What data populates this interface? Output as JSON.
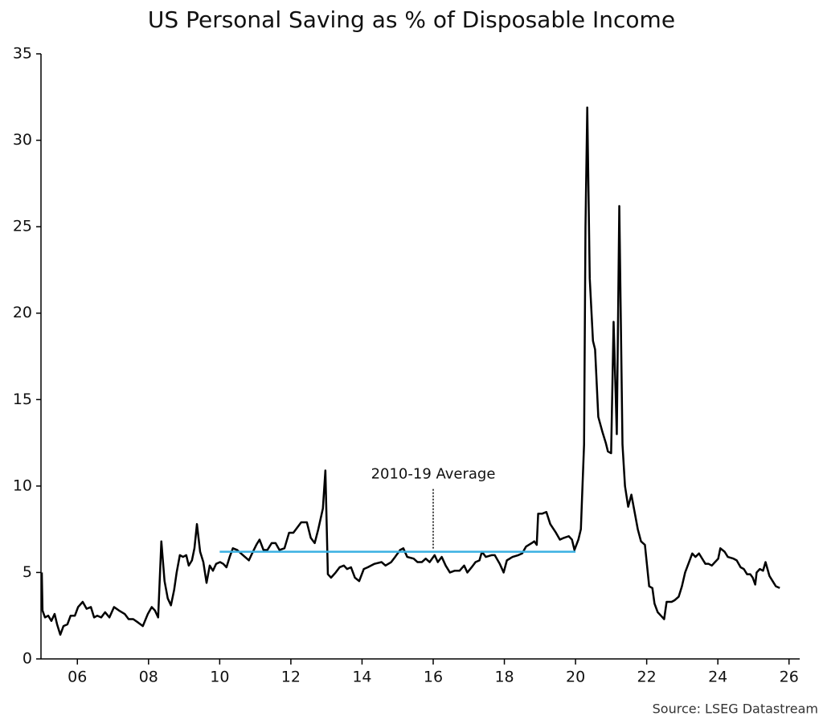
{
  "chart_data": {
    "type": "line",
    "title": "US Personal Saving as % of Disposable Income",
    "source": "Source: LSEG Datastream",
    "annotation": {
      "text": "2010-19 Average",
      "x": 2016,
      "y": 6.2
    },
    "xlim": [
      2005,
      2026.3
    ],
    "xticks": [
      {
        "value": 2006,
        "label": "06"
      },
      {
        "value": 2008,
        "label": "08"
      },
      {
        "value": 2010,
        "label": "10"
      },
      {
        "value": 2012,
        "label": "12"
      },
      {
        "value": 2014,
        "label": "14"
      },
      {
        "value": 2016,
        "label": "16"
      },
      {
        "value": 2018,
        "label": "18"
      },
      {
        "value": 2020,
        "label": "20"
      },
      {
        "value": 2022,
        "label": "22"
      },
      {
        "value": 2024,
        "label": "24"
      },
      {
        "value": 2026,
        "label": "26"
      }
    ],
    "ylim": [
      0,
      35
    ],
    "yticks": [
      0,
      5,
      10,
      15,
      20,
      25,
      30,
      35
    ],
    "grid": false,
    "series": [
      {
        "color": "#000000",
        "x": [
          2005.0,
          2005.02,
          2005.09,
          2005.18,
          2005.27,
          2005.36,
          2005.43,
          2005.52,
          2005.61,
          2005.72,
          2005.81,
          2005.93,
          2006.02,
          2006.15,
          2006.26,
          2006.38,
          2006.47,
          2006.56,
          2006.67,
          2006.78,
          2006.9,
          2007.03,
          2007.17,
          2007.33,
          2007.44,
          2007.57,
          2007.71,
          2007.84,
          2007.98,
          2008.09,
          2008.18,
          2008.27,
          2008.36,
          2008.45,
          2008.54,
          2008.63,
          2008.72,
          2008.79,
          2008.88,
          2008.97,
          2009.06,
          2009.13,
          2009.22,
          2009.29,
          2009.36,
          2009.45,
          2009.54,
          2009.63,
          2009.72,
          2009.81,
          2009.9,
          2010.01,
          2010.1,
          2010.19,
          2010.28,
          2010.37,
          2010.49,
          2010.6,
          2010.71,
          2010.82,
          2010.91,
          2011.03,
          2011.12,
          2011.23,
          2011.34,
          2011.46,
          2011.57,
          2011.68,
          2011.82,
          2011.95,
          2012.07,
          2012.29,
          2012.45,
          2012.56,
          2012.67,
          2012.77,
          2012.9,
          2012.97,
          2013.04,
          2013.13,
          2013.26,
          2013.37,
          2013.49,
          2013.58,
          2013.69,
          2013.8,
          2013.92,
          2014.05,
          2014.16,
          2014.35,
          2014.55,
          2014.66,
          2014.82,
          2014.93,
          2015.07,
          2015.16,
          2015.27,
          2015.45,
          2015.56,
          2015.68,
          2015.79,
          2015.9,
          2016.04,
          2016.13,
          2016.24,
          2016.35,
          2016.47,
          2016.6,
          2016.74,
          2016.87,
          2016.96,
          2017.08,
          2017.19,
          2017.3,
          2017.37,
          2017.48,
          2017.64,
          2017.73,
          2017.87,
          2017.98,
          2018.07,
          2018.23,
          2018.39,
          2018.5,
          2018.61,
          2018.77,
          2018.84,
          2018.91,
          2018.95,
          2019.06,
          2019.18,
          2019.29,
          2019.45,
          2019.56,
          2019.67,
          2019.81,
          2019.9,
          2019.97,
          2020.08,
          2020.15,
          2020.24,
          2020.28,
          2020.33,
          2020.4,
          2020.49,
          2020.55,
          2020.64,
          2020.76,
          2020.85,
          2020.91,
          2021.0,
          2021.07,
          2021.16,
          2021.23,
          2021.32,
          2021.39,
          2021.48,
          2021.57,
          2021.66,
          2021.75,
          2021.84,
          2021.95,
          2022.07,
          2022.16,
          2022.22,
          2022.31,
          2022.4,
          2022.49,
          2022.56,
          2022.7,
          2022.79,
          2022.9,
          2022.99,
          2023.08,
          2023.19,
          2023.28,
          2023.37,
          2023.47,
          2023.56,
          2023.65,
          2023.74,
          2023.83,
          2023.92,
          2024.01,
          2024.07,
          2024.19,
          2024.28,
          2024.44,
          2024.53,
          2024.64,
          2024.73,
          2024.82,
          2024.91,
          2024.98,
          2025.05,
          2025.09,
          2025.18,
          2025.27,
          2025.34,
          2025.45,
          2025.54,
          2025.63,
          2025.74
        ],
        "values": [
          5.0,
          2.8,
          2.4,
          2.5,
          2.2,
          2.6,
          2.0,
          1.4,
          1.9,
          2.0,
          2.5,
          2.5,
          3.0,
          3.3,
          2.9,
          3.0,
          2.4,
          2.5,
          2.4,
          2.7,
          2.4,
          3.0,
          2.8,
          2.6,
          2.3,
          2.3,
          2.1,
          1.9,
          2.6,
          3.0,
          2.8,
          2.4,
          6.8,
          4.5,
          3.5,
          3.1,
          4.0,
          5.0,
          6.0,
          5.9,
          6.0,
          5.4,
          5.7,
          6.4,
          7.8,
          6.2,
          5.6,
          4.4,
          5.4,
          5.1,
          5.5,
          5.6,
          5.5,
          5.3,
          5.9,
          6.4,
          6.3,
          6.1,
          5.9,
          5.7,
          6.1,
          6.6,
          6.9,
          6.3,
          6.3,
          6.7,
          6.7,
          6.3,
          6.4,
          7.3,
          7.3,
          7.9,
          7.9,
          7.0,
          6.7,
          7.5,
          8.7,
          10.9,
          4.9,
          4.7,
          5.0,
          5.3,
          5.4,
          5.2,
          5.3,
          4.7,
          4.5,
          5.2,
          5.3,
          5.5,
          5.6,
          5.4,
          5.6,
          5.9,
          6.3,
          6.4,
          5.9,
          5.8,
          5.6,
          5.6,
          5.8,
          5.6,
          6.0,
          5.6,
          5.9,
          5.4,
          5.0,
          5.1,
          5.1,
          5.4,
          5.0,
          5.3,
          5.6,
          5.7,
          6.2,
          5.9,
          6.0,
          6.0,
          5.5,
          5.0,
          5.7,
          5.9,
          6.0,
          6.1,
          6.5,
          6.7,
          6.8,
          6.6,
          8.4,
          8.4,
          8.5,
          7.8,
          7.3,
          6.9,
          7.0,
          7.1,
          6.9,
          6.3,
          6.9,
          7.5,
          12.4,
          25.0,
          31.9,
          22.0,
          18.4,
          17.9,
          14.0,
          13.1,
          12.5,
          12.0,
          11.9,
          19.5,
          13.0,
          26.2,
          12.4,
          10.0,
          8.8,
          9.5,
          8.5,
          7.5,
          6.8,
          6.6,
          4.2,
          4.1,
          3.2,
          2.7,
          2.5,
          2.3,
          3.3,
          3.3,
          3.4,
          3.6,
          4.2,
          5.0,
          5.6,
          6.1,
          5.9,
          6.1,
          5.8,
          5.5,
          5.5,
          5.4,
          5.6,
          5.8,
          6.4,
          6.2,
          5.9,
          5.8,
          5.7,
          5.3,
          5.2,
          4.9,
          4.9,
          4.7,
          4.3,
          5.0,
          5.2,
          5.1,
          5.6,
          4.8,
          4.5,
          4.2,
          4.1
        ]
      },
      {
        "color": "#3ab0e2",
        "x": [
          2010,
          2020
        ],
        "values": [
          6.2,
          6.2
        ]
      }
    ]
  }
}
